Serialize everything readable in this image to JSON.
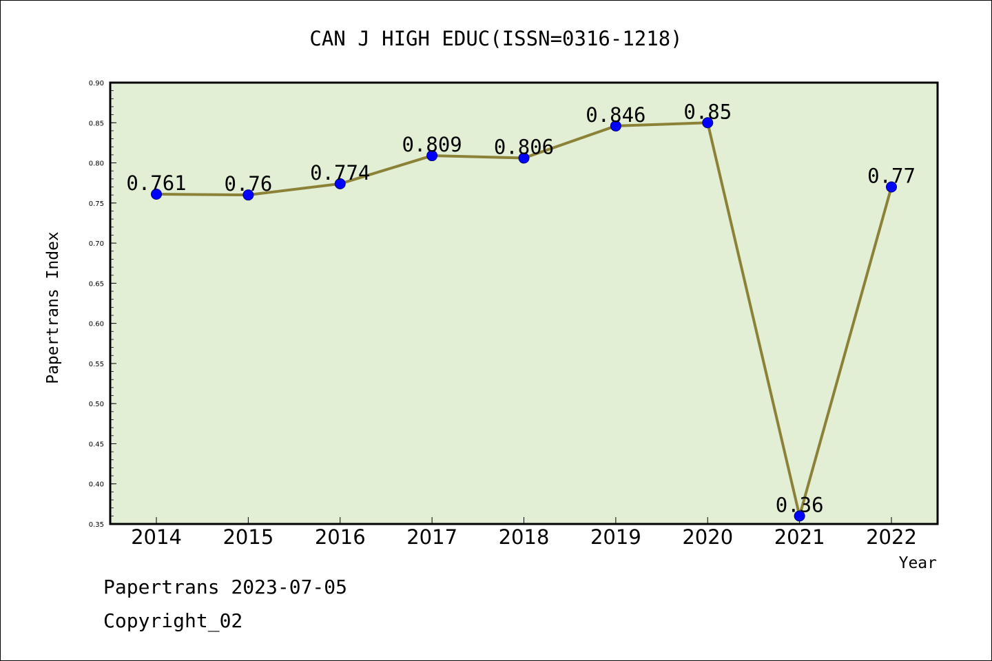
{
  "chart_data": {
    "type": "line",
    "title": "CAN J HIGH EDUC(ISSN=0316-1218)",
    "xlabel": "Year",
    "ylabel": "Papertrans Index",
    "categories": [
      "2014",
      "2015",
      "2016",
      "2017",
      "2018",
      "2019",
      "2020",
      "2021",
      "2022"
    ],
    "values": [
      0.761,
      0.76,
      0.774,
      0.809,
      0.806,
      0.846,
      0.85,
      0.36,
      0.77
    ],
    "value_labels": [
      "0.761",
      "0.76",
      "0.774",
      "0.809",
      "0.806",
      "0.846",
      "0.85",
      "0.36",
      "0.77"
    ],
    "ylim": [
      0.35,
      0.9
    ],
    "yticks": [
      "0.35",
      "0.40",
      "0.45",
      "0.50",
      "0.55",
      "0.60",
      "0.65",
      "0.70",
      "0.75",
      "0.80",
      "0.85",
      "0.90"
    ],
    "grid": false,
    "colors": {
      "plot_background": "#e2efd4",
      "line": "#8b8237",
      "marker": "#0000ff"
    }
  },
  "footer": {
    "date_line": "Papertrans 2023-07-05",
    "copyright_line": "Copyright_02"
  }
}
